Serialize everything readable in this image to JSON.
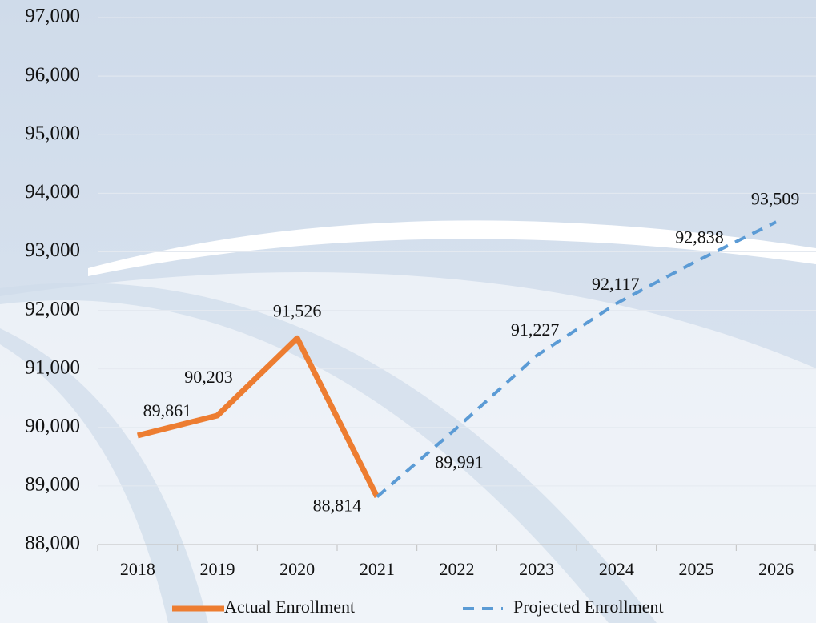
{
  "chart_data": {
    "type": "line",
    "categories": [
      "2018",
      "2019",
      "2020",
      "2021",
      "2022",
      "2023",
      "2024",
      "2025",
      "2026"
    ],
    "series": [
      {
        "name": "Actual Enrollment",
        "color": "#ed7d31",
        "dash": false,
        "values": [
          89861,
          90203,
          91526,
          88814,
          null,
          null,
          null,
          null,
          null
        ],
        "value_labels": [
          "89,861",
          "90,203",
          "91,526",
          "88,814",
          null,
          null,
          null,
          null,
          null
        ]
      },
      {
        "name": "Projected Enrollment",
        "color": "#5b9bd5",
        "dash": true,
        "values": [
          null,
          null,
          null,
          88814,
          89991,
          91227,
          92117,
          92838,
          93509
        ],
        "value_labels": [
          null,
          null,
          null,
          null,
          "89,991",
          "91,227",
          "92,117",
          "92,838",
          "93,509"
        ]
      }
    ],
    "ylim": [
      88000,
      97000
    ],
    "yticks": [
      {
        "value": 88000,
        "label": "88,000"
      },
      {
        "value": 89000,
        "label": "89,000"
      },
      {
        "value": 90000,
        "label": "90,000"
      },
      {
        "value": 91000,
        "label": "91,000"
      },
      {
        "value": 92000,
        "label": "92,000"
      },
      {
        "value": 93000,
        "label": "93,000"
      },
      {
        "value": 94000,
        "label": "94,000"
      },
      {
        "value": 95000,
        "label": "95,000"
      },
      {
        "value": 96000,
        "label": "96,000"
      },
      {
        "value": 97000,
        "label": "97,000"
      }
    ],
    "grid": true,
    "legend": "bottom"
  }
}
